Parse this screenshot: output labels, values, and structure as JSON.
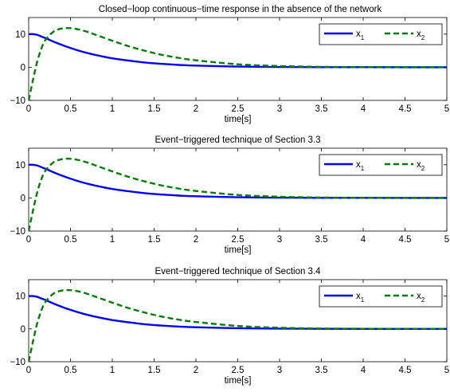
{
  "chart_data": [
    {
      "type": "line",
      "title": "Closed−loop continuous−time response in the absence of the network",
      "xlabel": "time[s]",
      "ylabel": "",
      "xlim": [
        0,
        5
      ],
      "ylim": [
        -10,
        15
      ],
      "xticks": [
        "0",
        "0.5",
        "1",
        "1.5",
        "2",
        "2.5",
        "3",
        "3.5",
        "4",
        "4.5",
        "5"
      ],
      "yticks": [
        "10",
        "0",
        "−10"
      ],
      "legend_position": "top-right",
      "series": [
        {
          "name": "x1",
          "label_base": "x",
          "label_sub": "1",
          "color": "#0000ff",
          "style": "solid",
          "x": [
            0,
            0.05,
            0.1,
            0.15,
            0.2,
            0.3,
            0.4,
            0.5,
            0.6,
            0.7,
            0.8,
            1.0,
            1.2,
            1.4,
            1.6,
            1.8,
            2.0,
            2.5,
            3.0,
            3.5,
            4.0,
            4.5,
            5.0
          ],
          "y": [
            10,
            10,
            9.8,
            9.3,
            8.8,
            7.7,
            6.7,
            5.8,
            5.0,
            4.3,
            3.7,
            2.7,
            2.0,
            1.4,
            1.0,
            0.7,
            0.5,
            0.2,
            0.08,
            0.03,
            0.01,
            0,
            0
          ]
        },
        {
          "name": "x2",
          "label_base": "x",
          "label_sub": "2",
          "color": "#008000",
          "style": "dashed",
          "x": [
            0,
            0.05,
            0.1,
            0.15,
            0.2,
            0.3,
            0.4,
            0.5,
            0.6,
            0.7,
            0.8,
            1.0,
            1.2,
            1.4,
            1.6,
            1.8,
            2.0,
            2.5,
            3.0,
            3.5,
            4.0,
            4.5,
            5.0
          ],
          "y": [
            -10,
            -4,
            1.5,
            5.5,
            8.2,
            10.8,
            11.7,
            11.8,
            11.4,
            10.7,
            9.8,
            8.0,
            6.3,
            4.9,
            3.7,
            2.8,
            2.1,
            0.9,
            0.35,
            0.12,
            0.04,
            0.01,
            0
          ]
        }
      ]
    },
    {
      "type": "line",
      "title": "Event−triggered technique of Section 3.3",
      "xlabel": "time[s]",
      "ylabel": "",
      "xlim": [
        0,
        5
      ],
      "ylim": [
        -10,
        15
      ],
      "xticks": [
        "0",
        "0.5",
        "1",
        "1.5",
        "2",
        "2.5",
        "3",
        "3.5",
        "4",
        "4.5",
        "5"
      ],
      "yticks": [
        "10",
        "0",
        "−10"
      ],
      "legend_position": "top-right",
      "series": [
        {
          "name": "x1",
          "label_base": "x",
          "label_sub": "1",
          "color": "#0000ff",
          "style": "solid",
          "x": [
            0,
            0.05,
            0.1,
            0.15,
            0.2,
            0.3,
            0.4,
            0.5,
            0.6,
            0.7,
            0.8,
            1.0,
            1.2,
            1.4,
            1.6,
            1.8,
            2.0,
            2.5,
            3.0,
            3.5,
            4.0,
            4.5,
            5.0
          ],
          "y": [
            10,
            10,
            9.8,
            9.3,
            8.8,
            7.7,
            6.7,
            5.8,
            5.0,
            4.3,
            3.7,
            2.7,
            2.0,
            1.4,
            1.0,
            0.7,
            0.5,
            0.2,
            0.08,
            0.03,
            0.01,
            0,
            0
          ]
        },
        {
          "name": "x2",
          "label_base": "x",
          "label_sub": "2",
          "color": "#008000",
          "style": "dashed",
          "x": [
            0,
            0.05,
            0.1,
            0.15,
            0.2,
            0.3,
            0.4,
            0.5,
            0.6,
            0.7,
            0.8,
            1.0,
            1.2,
            1.4,
            1.6,
            1.8,
            2.0,
            2.5,
            3.0,
            3.5,
            4.0,
            4.5,
            5.0
          ],
          "y": [
            -10,
            -4,
            1.5,
            5.5,
            8.2,
            10.8,
            11.7,
            11.8,
            11.4,
            10.7,
            9.8,
            8.0,
            6.3,
            4.9,
            3.7,
            2.8,
            2.1,
            0.9,
            0.35,
            0.12,
            0.04,
            0.01,
            0
          ]
        }
      ]
    },
    {
      "type": "line",
      "title": "Event−triggered technique of Section 3.4",
      "xlabel": "time[s]",
      "ylabel": "",
      "xlim": [
        0,
        5
      ],
      "ylim": [
        -10,
        15
      ],
      "xticks": [
        "0",
        "0.5",
        "1",
        "1.5",
        "2",
        "2.5",
        "3",
        "3.5",
        "4",
        "4.5",
        "5"
      ],
      "yticks": [
        "10",
        "0",
        "−10"
      ],
      "legend_position": "top-right",
      "series": [
        {
          "name": "x1",
          "label_base": "x",
          "label_sub": "1",
          "color": "#0000ff",
          "style": "solid",
          "x": [
            0,
            0.05,
            0.1,
            0.15,
            0.2,
            0.3,
            0.4,
            0.5,
            0.6,
            0.7,
            0.8,
            1.0,
            1.2,
            1.4,
            1.6,
            1.8,
            2.0,
            2.5,
            3.0,
            3.5,
            4.0,
            4.5,
            5.0
          ],
          "y": [
            10,
            10,
            9.8,
            9.3,
            8.8,
            7.7,
            6.7,
            5.8,
            5.0,
            4.3,
            3.7,
            2.7,
            2.0,
            1.4,
            1.0,
            0.7,
            0.5,
            0.2,
            0.08,
            0.03,
            0.01,
            0,
            0
          ]
        },
        {
          "name": "x2",
          "label_base": "x",
          "label_sub": "2",
          "color": "#008000",
          "style": "dashed",
          "x": [
            0,
            0.05,
            0.1,
            0.15,
            0.2,
            0.3,
            0.4,
            0.5,
            0.6,
            0.7,
            0.8,
            1.0,
            1.2,
            1.4,
            1.6,
            1.8,
            2.0,
            2.5,
            3.0,
            3.5,
            4.0,
            4.5,
            5.0
          ],
          "y": [
            -10,
            -4,
            1.5,
            5.5,
            8.2,
            10.8,
            11.7,
            11.8,
            11.4,
            10.7,
            9.8,
            8.0,
            6.3,
            4.9,
            3.7,
            2.8,
            2.1,
            0.9,
            0.35,
            0.12,
            0.04,
            0.01,
            0
          ]
        }
      ]
    }
  ]
}
